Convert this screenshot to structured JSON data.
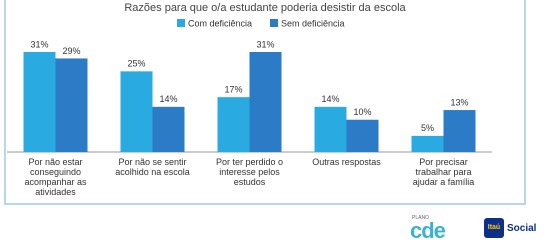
{
  "chart_data": {
    "type": "bar",
    "title": "Razões para que o/a estudante poderia desistir da escola",
    "categories": [
      "Por não estar conseguindo acompanhar as atividades",
      "Por não se sentir acolhido na escola",
      "Por ter perdido o interesse pelos estudos",
      "Outras respostas",
      "Por precisar trabalhar para ajudar a família"
    ],
    "series": [
      {
        "name": "Com deficiência",
        "color": "#29abe2",
        "values": [
          31,
          25,
          17,
          14,
          5
        ],
        "value_labels": [
          "31%",
          "25%",
          "17%",
          "14%",
          "5%"
        ]
      },
      {
        "name": "Sem deficiência",
        "color": "#2b7bc6",
        "values": [
          29,
          14,
          31,
          10,
          13
        ],
        "value_labels": [
          "29%",
          "14%",
          "31%",
          "10%",
          "13%"
        ]
      }
    ]
  },
  "logos": {
    "plano": "PLANO",
    "cde": "cde",
    "itau": "Itaú",
    "social": "Social"
  }
}
